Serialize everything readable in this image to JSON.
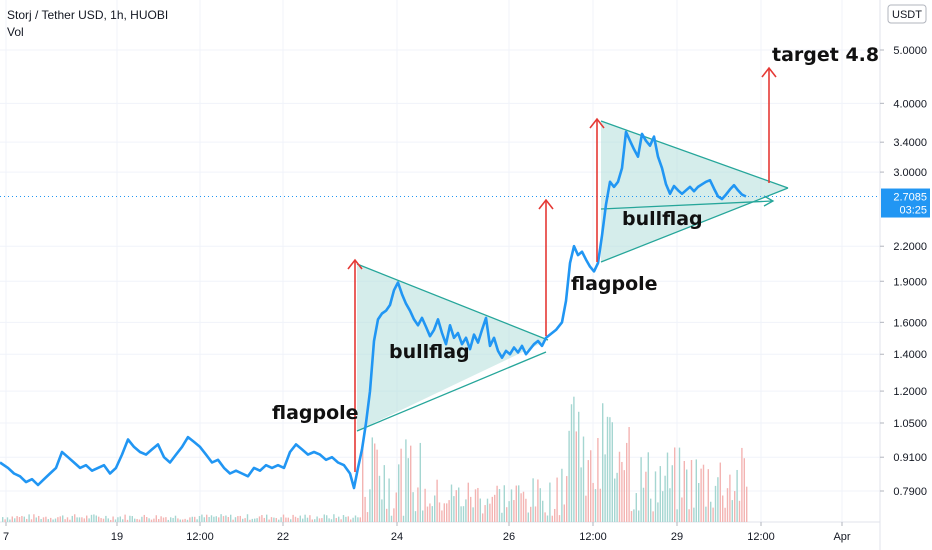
{
  "legend": {
    "title": "Storj / Tether USD, 1h, HUOBI",
    "indicator": "Vol"
  },
  "price_scale": {
    "currency_badge": "USDT",
    "last_price": "2.7085",
    "countdown": "03:25"
  },
  "annotations": {
    "flagpole_1": "flagpole",
    "bullflag_1": "bullflag",
    "flagpole_2": "flagpole",
    "bullflag_2": "bullflag",
    "target": "target 4.8"
  },
  "colors": {
    "price_line": "#2196f3",
    "arrow": "#e53935",
    "triangle_stroke": "#26a69a",
    "triangle_fill": "#b2dfdb",
    "vol_up": "#a5d6d1",
    "vol_down": "#f3b4b2",
    "last_price_badge": "#2196f3"
  },
  "chart_data": {
    "type": "line",
    "y_scale": "log",
    "ylim": [
      0.68,
      6.0
    ],
    "y_ticks": [
      "5.0000",
      "4.0000",
      "3.4000",
      "3.0000",
      "2.7085",
      "2.2000",
      "1.9000",
      "1.6000",
      "1.4000",
      "1.2000",
      "1.0500",
      "0.9100",
      "0.7900"
    ],
    "y_tick_values": [
      5.0,
      4.0,
      3.4,
      3.0,
      2.2,
      1.9,
      1.6,
      1.4,
      1.2,
      1.05,
      0.91,
      0.79
    ],
    "x_ticks": [
      "7",
      "19",
      "12:00",
      "22",
      "24",
      "26",
      "12:00",
      "29",
      "12:00",
      "Apr"
    ],
    "x_tick_positions": [
      6,
      117,
      200,
      283,
      397,
      509,
      593,
      677,
      761,
      842
    ],
    "x_range": [
      0,
      880
    ],
    "series": [
      {
        "values": [
          [
            0,
            0.89
          ],
          [
            8,
            0.87
          ],
          [
            14,
            0.85
          ],
          [
            20,
            0.84
          ],
          [
            26,
            0.82
          ],
          [
            32,
            0.83
          ],
          [
            38,
            0.81
          ],
          [
            44,
            0.83
          ],
          [
            50,
            0.85
          ],
          [
            56,
            0.87
          ],
          [
            62,
            0.93
          ],
          [
            68,
            0.91
          ],
          [
            74,
            0.89
          ],
          [
            80,
            0.87
          ],
          [
            86,
            0.88
          ],
          [
            92,
            0.86
          ],
          [
            98,
            0.87
          ],
          [
            104,
            0.88
          ],
          [
            110,
            0.85
          ],
          [
            116,
            0.87
          ],
          [
            122,
            0.92
          ],
          [
            128,
            0.98
          ],
          [
            134,
            0.95
          ],
          [
            140,
            0.93
          ],
          [
            146,
            0.92
          ],
          [
            152,
            0.94
          ],
          [
            158,
            0.96
          ],
          [
            164,
            0.91
          ],
          [
            170,
            0.89
          ],
          [
            176,
            0.92
          ],
          [
            182,
            0.95
          ],
          [
            188,
            0.99
          ],
          [
            194,
            0.97
          ],
          [
            200,
            0.95
          ],
          [
            206,
            0.92
          ],
          [
            212,
            0.89
          ],
          [
            218,
            0.9
          ],
          [
            224,
            0.87
          ],
          [
            230,
            0.85
          ],
          [
            236,
            0.86
          ],
          [
            242,
            0.85
          ],
          [
            248,
            0.84
          ],
          [
            254,
            0.87
          ],
          [
            260,
            0.86
          ],
          [
            266,
            0.88
          ],
          [
            272,
            0.87
          ],
          [
            278,
            0.88
          ],
          [
            284,
            0.87
          ],
          [
            290,
            0.93
          ],
          [
            296,
            0.96
          ],
          [
            302,
            0.94
          ],
          [
            308,
            0.92
          ],
          [
            314,
            0.93
          ],
          [
            320,
            0.92
          ],
          [
            326,
            0.9
          ],
          [
            332,
            0.91
          ],
          [
            338,
            0.89
          ],
          [
            344,
            0.88
          ],
          [
            350,
            0.85
          ],
          [
            354,
            0.8
          ],
          [
            358,
            0.87
          ],
          [
            362,
            0.94
          ],
          [
            366,
            1.05
          ],
          [
            370,
            1.2
          ],
          [
            374,
            1.48
          ],
          [
            378,
            1.62
          ],
          [
            382,
            1.66
          ],
          [
            386,
            1.68
          ],
          [
            390,
            1.72
          ],
          [
            394,
            1.83
          ],
          [
            398,
            1.89
          ],
          [
            402,
            1.8
          ],
          [
            406,
            1.73
          ],
          [
            410,
            1.68
          ],
          [
            414,
            1.62
          ],
          [
            418,
            1.58
          ],
          [
            422,
            1.63
          ],
          [
            426,
            1.57
          ],
          [
            430,
            1.51
          ],
          [
            434,
            1.55
          ],
          [
            438,
            1.62
          ],
          [
            442,
            1.53
          ],
          [
            446,
            1.46
          ],
          [
            450,
            1.58
          ],
          [
            454,
            1.5
          ],
          [
            458,
            1.53
          ],
          [
            462,
            1.46
          ],
          [
            466,
            1.5
          ],
          [
            470,
            1.43
          ],
          [
            474,
            1.52
          ],
          [
            478,
            1.47
          ],
          [
            482,
            1.55
          ],
          [
            486,
            1.63
          ],
          [
            490,
            1.45
          ],
          [
            494,
            1.5
          ],
          [
            498,
            1.42
          ],
          [
            502,
            1.38
          ],
          [
            506,
            1.42
          ],
          [
            510,
            1.4
          ],
          [
            514,
            1.44
          ],
          [
            518,
            1.41
          ],
          [
            522,
            1.45
          ],
          [
            526,
            1.4
          ],
          [
            530,
            1.43
          ],
          [
            534,
            1.46
          ],
          [
            538,
            1.48
          ],
          [
            542,
            1.45
          ],
          [
            546,
            1.5
          ],
          [
            550,
            1.52
          ],
          [
            556,
            1.55
          ],
          [
            562,
            1.6
          ],
          [
            566,
            1.75
          ],
          [
            570,
            2.05
          ],
          [
            574,
            2.2
          ],
          [
            578,
            2.12
          ],
          [
            582,
            2.15
          ],
          [
            586,
            2.08
          ],
          [
            590,
            2.02
          ],
          [
            594,
            1.98
          ],
          [
            598,
            2.05
          ],
          [
            602,
            2.3
          ],
          [
            606,
            2.62
          ],
          [
            610,
            2.88
          ],
          [
            614,
            2.82
          ],
          [
            618,
            2.88
          ],
          [
            622,
            3.05
          ],
          [
            626,
            3.55
          ],
          [
            630,
            3.42
          ],
          [
            634,
            3.3
          ],
          [
            638,
            3.2
          ],
          [
            642,
            3.52
          ],
          [
            646,
            3.42
          ],
          [
            650,
            3.35
          ],
          [
            654,
            3.48
          ],
          [
            658,
            3.2
          ],
          [
            662,
            3.05
          ],
          [
            666,
            2.85
          ],
          [
            670,
            2.74
          ],
          [
            674,
            2.83
          ],
          [
            678,
            2.78
          ],
          [
            682,
            2.74
          ],
          [
            686,
            2.78
          ],
          [
            690,
            2.82
          ],
          [
            694,
            2.77
          ],
          [
            698,
            2.82
          ],
          [
            702,
            2.85
          ],
          [
            706,
            2.88
          ],
          [
            710,
            2.9
          ],
          [
            714,
            2.8
          ],
          [
            718,
            2.71
          ],
          [
            722,
            2.68
          ],
          [
            726,
            2.73
          ],
          [
            730,
            2.79
          ],
          [
            734,
            2.84
          ],
          [
            738,
            2.78
          ],
          [
            742,
            2.73
          ],
          [
            746,
            2.7085
          ]
        ]
      }
    ],
    "volume": {
      "max": 1.0,
      "bars": []
    }
  }
}
